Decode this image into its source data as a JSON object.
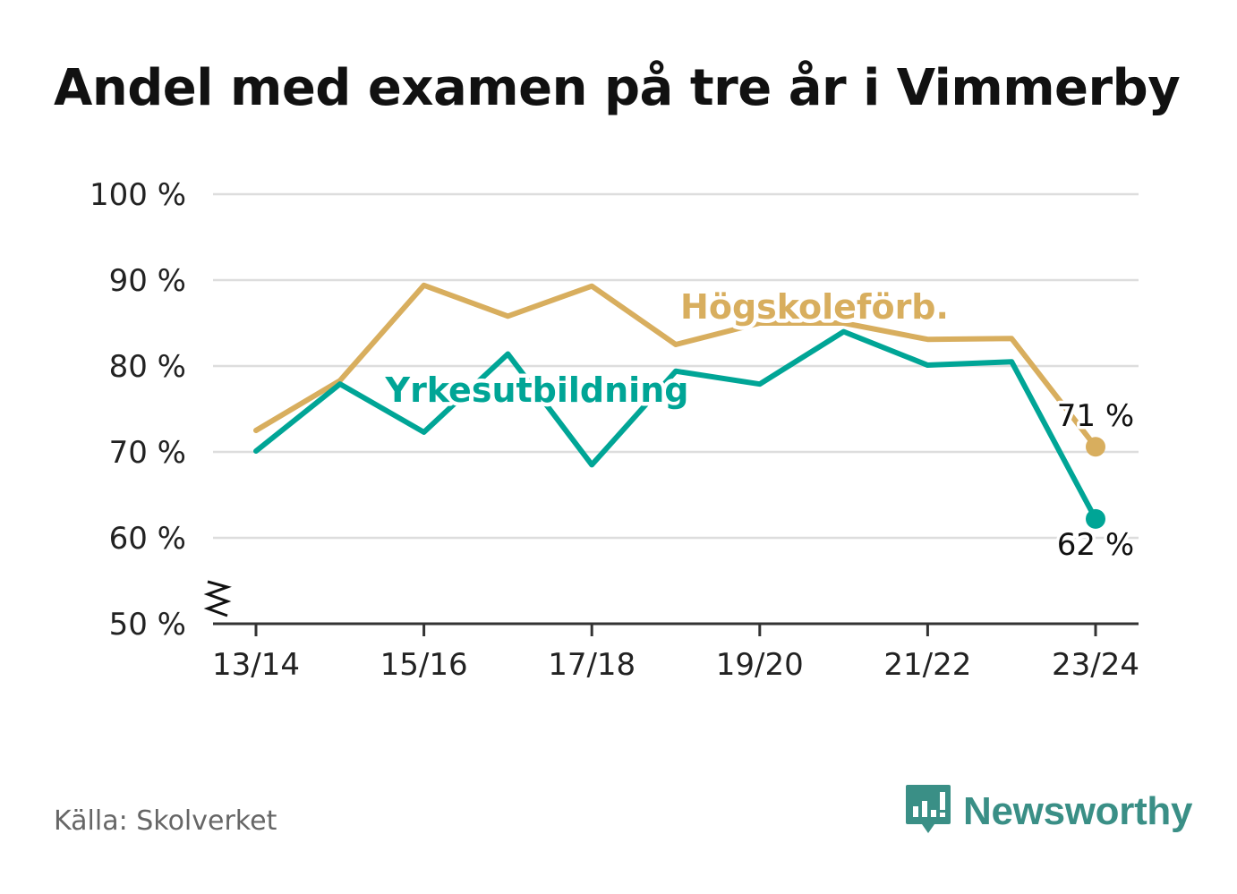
{
  "colors": {
    "yrke": "#00a596",
    "hogskole": "#d8ae5e",
    "grid": "#dddddd",
    "axis": "#333333",
    "brand": "#3a8f86"
  },
  "source": "Källa: Skolverket",
  "brand": {
    "name": "Newsworthy",
    "icon": "bar-chart-speech-bubble-icon"
  },
  "chart_data": {
    "type": "line",
    "title": "Andel med examen på tre år i Vimmerby",
    "x": [
      "13/14",
      "14/15",
      "15/16",
      "16/17",
      "17/18",
      "18/19",
      "19/20",
      "20/21",
      "21/22",
      "22/23",
      "23/24"
    ],
    "x_tick_labels": [
      "13/14",
      "15/16",
      "17/18",
      "19/20",
      "21/22",
      "23/24"
    ],
    "y_tick_labels": [
      "100 %",
      "90 %",
      "80 %",
      "70 %",
      "60 %",
      "50 %"
    ],
    "ylim": [
      50,
      100
    ],
    "y_ticks": [
      100,
      90,
      80,
      70,
      60,
      50
    ],
    "y_axis_break": true,
    "grid": true,
    "legend": "inline",
    "series": [
      {
        "name": "Högskoleförb.",
        "color": "#d8ae5e",
        "values": [
          72.5,
          78.3,
          89.4,
          85.8,
          89.3,
          82.5,
          85.0,
          85.0,
          83.1,
          83.2,
          70.6
        ],
        "end_label": "71 %"
      },
      {
        "name": "Yrkesutbildning",
        "color": "#00a596",
        "values": [
          70.1,
          77.9,
          72.3,
          81.4,
          68.5,
          79.4,
          77.9,
          84.0,
          80.1,
          80.5,
          62.2
        ],
        "end_label": "62 %"
      }
    ]
  }
}
